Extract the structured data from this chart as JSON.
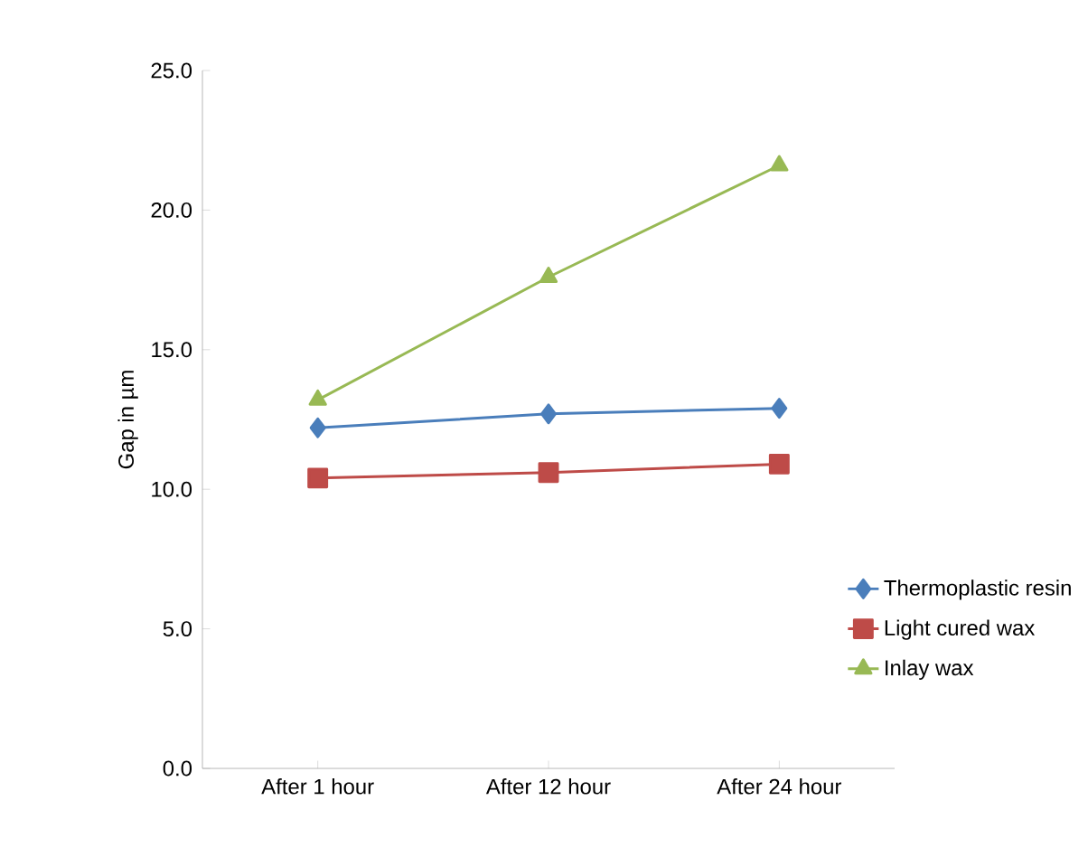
{
  "chart_data": {
    "type": "line",
    "ylabel": "Gap in µm",
    "categories": [
      "After 1 hour",
      "After 12 hour",
      "After 24 hour"
    ],
    "series": [
      {
        "name": "Thermoplastic resin",
        "color": "#4a7ebb",
        "marker": "diamond",
        "values": [
          12.2,
          12.7,
          12.9
        ]
      },
      {
        "name": "Light cured wax",
        "color": "#be4b48",
        "marker": "square",
        "values": [
          10.4,
          10.6,
          10.9
        ]
      },
      {
        "name": "Inlay wax",
        "color": "#98b954",
        "marker": "triangle",
        "values": [
          13.2,
          17.6,
          21.6
        ]
      }
    ],
    "ylim": [
      0,
      25
    ],
    "yticks": [
      {
        "value": 0,
        "label": "0.0"
      },
      {
        "value": 5,
        "label": "5.0"
      },
      {
        "value": 10,
        "label": "10.0"
      },
      {
        "value": 15,
        "label": "15.0"
      },
      {
        "value": 20,
        "label": "20.0"
      },
      {
        "value": 25,
        "label": "25.0"
      }
    ],
    "grid": false,
    "legend": "right"
  }
}
